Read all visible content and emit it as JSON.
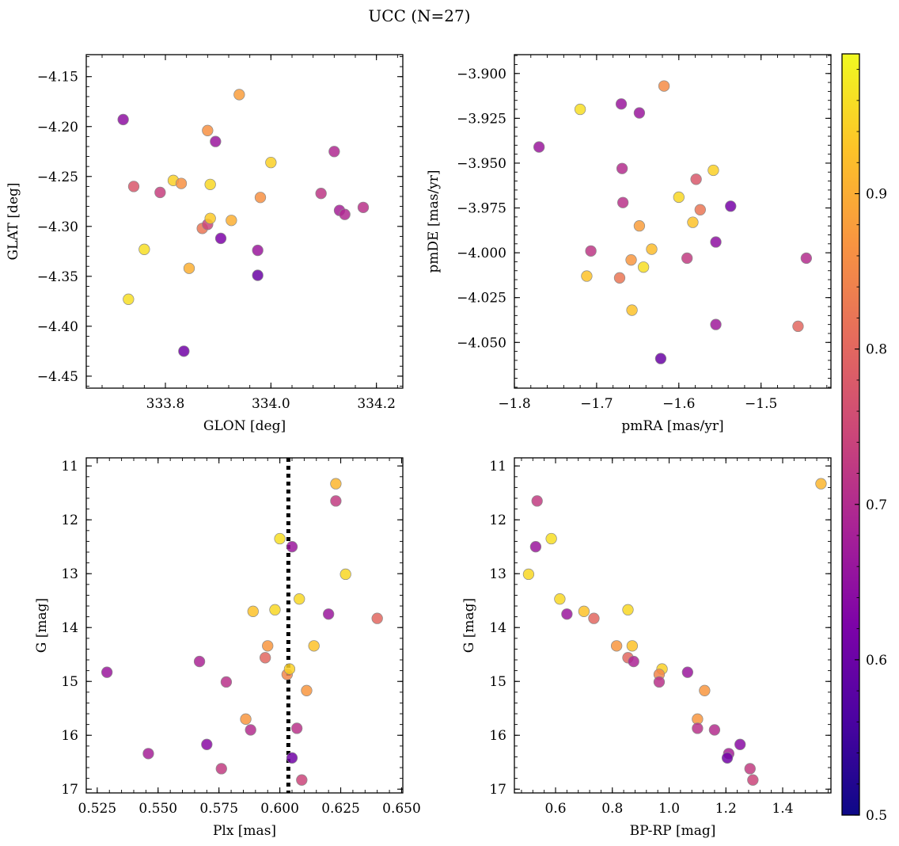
{
  "figure": {
    "title": "UCC (N=27)",
    "colorbar": {
      "colormap": "plasma",
      "range": [
        0.5,
        0.99
      ],
      "ticks": [
        "0.5",
        "0.6",
        "0.7",
        "0.8",
        "0.9"
      ],
      "tick_values": [
        0.5,
        0.6,
        0.7,
        0.8,
        0.9
      ]
    }
  },
  "chart_data": [
    {
      "id": "glon-glat",
      "type": "scatter",
      "xlabel": "GLON [deg]",
      "ylabel": "GLAT [deg]",
      "xlim": [
        333.65,
        334.25
      ],
      "ylim": [
        -4.462,
        -4.128
      ],
      "y_inverted": false,
      "xticks": [
        333.8,
        334.0,
        334.2
      ],
      "xtick_labels": [
        "333.8",
        "334.0",
        "334.2"
      ],
      "yticks": [
        -4.15,
        -4.2,
        -4.25,
        -4.3,
        -4.35,
        -4.4,
        -4.45
      ],
      "ytick_labels": [
        "−4.15",
        "−4.20",
        "−4.25",
        "−4.30",
        "−4.35",
        "−4.40",
        "−4.45"
      ],
      "points": [
        {
          "x": 333.72,
          "y": -4.193,
          "p": 0.58
        },
        {
          "x": 333.74,
          "y": -4.26,
          "p": 0.74
        },
        {
          "x": 333.76,
          "y": -4.323,
          "p": 0.97
        },
        {
          "x": 333.73,
          "y": -4.373,
          "p": 0.97
        },
        {
          "x": 333.79,
          "y": -4.266,
          "p": 0.69
        },
        {
          "x": 333.815,
          "y": -4.254,
          "p": 0.95
        },
        {
          "x": 333.83,
          "y": -4.257,
          "p": 0.85
        },
        {
          "x": 333.835,
          "y": -4.425,
          "p": 0.53
        },
        {
          "x": 333.845,
          "y": -4.342,
          "p": 0.9
        },
        {
          "x": 333.87,
          "y": -4.302,
          "p": 0.8
        },
        {
          "x": 333.88,
          "y": -4.204,
          "p": 0.85
        },
        {
          "x": 333.88,
          "y": -4.298,
          "p": 0.7
        },
        {
          "x": 333.885,
          "y": -4.258,
          "p": 0.96
        },
        {
          "x": 333.885,
          "y": -4.292,
          "p": 0.94
        },
        {
          "x": 333.895,
          "y": -4.215,
          "p": 0.6
        },
        {
          "x": 333.905,
          "y": -4.312,
          "p": 0.55
        },
        {
          "x": 333.925,
          "y": -4.294,
          "p": 0.9
        },
        {
          "x": 333.94,
          "y": -4.168,
          "p": 0.87
        },
        {
          "x": 333.975,
          "y": -4.349,
          "p": 0.52
        },
        {
          "x": 333.975,
          "y": -4.324,
          "p": 0.6
        },
        {
          "x": 333.98,
          "y": -4.271,
          "p": 0.85
        },
        {
          "x": 334.0,
          "y": -4.236,
          "p": 0.95
        },
        {
          "x": 334.095,
          "y": -4.267,
          "p": 0.67
        },
        {
          "x": 334.12,
          "y": -4.225,
          "p": 0.64
        },
        {
          "x": 334.13,
          "y": -4.284,
          "p": 0.62
        },
        {
          "x": 334.14,
          "y": -4.288,
          "p": 0.64
        },
        {
          "x": 334.175,
          "y": -4.281,
          "p": 0.66
        }
      ]
    },
    {
      "id": "pmra-pmde",
      "type": "scatter",
      "xlabel": "pmRA [mas/yr]",
      "ylabel": "pmDE [mas/yr]",
      "xlim": [
        -1.8,
        -1.415
      ],
      "ylim": [
        -4.0755,
        -3.8895
      ],
      "y_inverted": false,
      "xticks": [
        -1.8,
        -1.7,
        -1.6,
        -1.5
      ],
      "xtick_labels": [
        "−1.8",
        "−1.7",
        "−1.6",
        "−1.5"
      ],
      "yticks": [
        -3.9,
        -3.925,
        -3.95,
        -3.975,
        -4.0,
        -4.025,
        -4.05
      ],
      "ytick_labels": [
        "−3.900",
        "−3.925",
        "−3.950",
        "−3.975",
        "−4.000",
        "−4.025",
        "−4.050"
      ],
      "points": [
        {
          "x": -1.77,
          "y": -3.941,
          "p": 0.6
        },
        {
          "x": -1.72,
          "y": -3.92,
          "p": 0.97
        },
        {
          "x": -1.712,
          "y": -4.013,
          "p": 0.93
        },
        {
          "x": -1.707,
          "y": -3.999,
          "p": 0.67
        },
        {
          "x": -1.67,
          "y": -3.917,
          "p": 0.6
        },
        {
          "x": -1.669,
          "y": -3.953,
          "p": 0.65
        },
        {
          "x": -1.668,
          "y": -3.972,
          "p": 0.66
        },
        {
          "x": -1.672,
          "y": -4.014,
          "p": 0.8
        },
        {
          "x": -1.658,
          "y": -4.004,
          "p": 0.86
        },
        {
          "x": -1.657,
          "y": -4.032,
          "p": 0.93
        },
        {
          "x": -1.648,
          "y": -3.922,
          "p": 0.6
        },
        {
          "x": -1.648,
          "y": -3.985,
          "p": 0.87
        },
        {
          "x": -1.643,
          "y": -4.008,
          "p": 0.97
        },
        {
          "x": -1.633,
          "y": -3.998,
          "p": 0.92
        },
        {
          "x": -1.622,
          "y": -4.059,
          "p": 0.52
        },
        {
          "x": -1.618,
          "y": -3.907,
          "p": 0.84
        },
        {
          "x": -1.6,
          "y": -3.969,
          "p": 0.96
        },
        {
          "x": -1.59,
          "y": -4.003,
          "p": 0.68
        },
        {
          "x": -1.583,
          "y": -3.983,
          "p": 0.93
        },
        {
          "x": -1.579,
          "y": -3.959,
          "p": 0.74
        },
        {
          "x": -1.574,
          "y": -3.976,
          "p": 0.8
        },
        {
          "x": -1.558,
          "y": -3.954,
          "p": 0.95
        },
        {
          "x": -1.555,
          "y": -3.994,
          "p": 0.58
        },
        {
          "x": -1.555,
          "y": -4.04,
          "p": 0.61
        },
        {
          "x": -1.537,
          "y": -3.974,
          "p": 0.54
        },
        {
          "x": -1.455,
          "y": -4.041,
          "p": 0.77
        },
        {
          "x": -1.445,
          "y": -4.003,
          "p": 0.65
        }
      ]
    },
    {
      "id": "plx-g",
      "type": "scatter",
      "xlabel": "Plx [mas]",
      "ylabel": "G [mag]",
      "xlim": [
        0.5205,
        0.6505
      ],
      "ylim": [
        10.85,
        17.07
      ],
      "y_inverted": true,
      "xticks": [
        0.525,
        0.55,
        0.575,
        0.6,
        0.625,
        0.65
      ],
      "xtick_labels": [
        "0.525",
        "0.550",
        "0.575",
        "0.600",
        "0.625",
        "0.650"
      ],
      "yticks": [
        11,
        12,
        13,
        14,
        15,
        16,
        17
      ],
      "ytick_labels": [
        "11",
        "12",
        "13",
        "14",
        "15",
        "16",
        "17"
      ],
      "vline": {
        "x": 0.6035,
        "style": "dotted"
      },
      "points": [
        {
          "x": 0.529,
          "y": 14.83,
          "p": 0.6
        },
        {
          "x": 0.546,
          "y": 16.34,
          "p": 0.62
        },
        {
          "x": 0.567,
          "y": 14.63,
          "p": 0.63
        },
        {
          "x": 0.57,
          "y": 16.17,
          "p": 0.57
        },
        {
          "x": 0.576,
          "y": 16.62,
          "p": 0.68
        },
        {
          "x": 0.578,
          "y": 15.01,
          "p": 0.66
        },
        {
          "x": 0.586,
          "y": 15.7,
          "p": 0.86
        },
        {
          "x": 0.588,
          "y": 15.9,
          "p": 0.65
        },
        {
          "x": 0.589,
          "y": 13.7,
          "p": 0.93
        },
        {
          "x": 0.594,
          "y": 14.56,
          "p": 0.77
        },
        {
          "x": 0.595,
          "y": 14.34,
          "p": 0.86
        },
        {
          "x": 0.598,
          "y": 13.67,
          "p": 0.96
        },
        {
          "x": 0.6,
          "y": 12.35,
          "p": 0.97
        },
        {
          "x": 0.603,
          "y": 14.87,
          "p": 0.83
        },
        {
          "x": 0.604,
          "y": 14.77,
          "p": 0.95
        },
        {
          "x": 0.605,
          "y": 12.5,
          "p": 0.6
        },
        {
          "x": 0.605,
          "y": 16.42,
          "p": 0.53
        },
        {
          "x": 0.607,
          "y": 15.87,
          "p": 0.66
        },
        {
          "x": 0.608,
          "y": 13.47,
          "p": 0.96
        },
        {
          "x": 0.609,
          "y": 16.83,
          "p": 0.7
        },
        {
          "x": 0.611,
          "y": 15.17,
          "p": 0.86
        },
        {
          "x": 0.614,
          "y": 14.34,
          "p": 0.93
        },
        {
          "x": 0.62,
          "y": 13.75,
          "p": 0.6
        },
        {
          "x": 0.623,
          "y": 11.33,
          "p": 0.91
        },
        {
          "x": 0.623,
          "y": 11.65,
          "p": 0.68
        },
        {
          "x": 0.627,
          "y": 13.01,
          "p": 0.96
        },
        {
          "x": 0.64,
          "y": 13.83,
          "p": 0.77
        }
      ]
    },
    {
      "id": "bprp-g",
      "type": "scatter",
      "xlabel": "BP-RP [mag]",
      "ylabel": "G [mag]",
      "xlim": [
        0.455,
        1.57
      ],
      "ylim": [
        10.85,
        17.07
      ],
      "y_inverted": true,
      "xticks": [
        0.6,
        0.8,
        1.0,
        1.2,
        1.4
      ],
      "xtick_labels": [
        "0.6",
        "0.8",
        "1.0",
        "1.2",
        "1.4"
      ],
      "yticks": [
        11,
        12,
        13,
        14,
        15,
        16,
        17
      ],
      "ytick_labels": [
        "11",
        "12",
        "13",
        "14",
        "15",
        "16",
        "17"
      ],
      "points": [
        {
          "x": 1.535,
          "y": 11.33,
          "p": 0.91
        },
        {
          "x": 0.535,
          "y": 11.65,
          "p": 0.68
        },
        {
          "x": 0.585,
          "y": 12.35,
          "p": 0.97
        },
        {
          "x": 0.53,
          "y": 12.5,
          "p": 0.6
        },
        {
          "x": 0.505,
          "y": 13.01,
          "p": 0.96
        },
        {
          "x": 0.615,
          "y": 13.47,
          "p": 0.96
        },
        {
          "x": 0.855,
          "y": 13.67,
          "p": 0.96
        },
        {
          "x": 0.7,
          "y": 13.7,
          "p": 0.93
        },
        {
          "x": 0.64,
          "y": 13.75,
          "p": 0.6
        },
        {
          "x": 0.735,
          "y": 13.83,
          "p": 0.77
        },
        {
          "x": 0.815,
          "y": 14.34,
          "p": 0.86
        },
        {
          "x": 0.87,
          "y": 14.34,
          "p": 0.93
        },
        {
          "x": 0.855,
          "y": 14.56,
          "p": 0.77
        },
        {
          "x": 0.875,
          "y": 14.63,
          "p": 0.63
        },
        {
          "x": 0.975,
          "y": 14.77,
          "p": 0.95
        },
        {
          "x": 1.065,
          "y": 14.83,
          "p": 0.6
        },
        {
          "x": 0.965,
          "y": 14.87,
          "p": 0.83
        },
        {
          "x": 0.965,
          "y": 15.01,
          "p": 0.66
        },
        {
          "x": 1.125,
          "y": 15.17,
          "p": 0.86
        },
        {
          "x": 1.1,
          "y": 15.7,
          "p": 0.86
        },
        {
          "x": 1.1,
          "y": 15.87,
          "p": 0.66
        },
        {
          "x": 1.16,
          "y": 15.9,
          "p": 0.65
        },
        {
          "x": 1.25,
          "y": 16.17,
          "p": 0.57
        },
        {
          "x": 1.21,
          "y": 16.34,
          "p": 0.62
        },
        {
          "x": 1.205,
          "y": 16.42,
          "p": 0.53
        },
        {
          "x": 1.285,
          "y": 16.62,
          "p": 0.68
        },
        {
          "x": 1.295,
          "y": 16.83,
          "p": 0.7
        }
      ]
    }
  ]
}
